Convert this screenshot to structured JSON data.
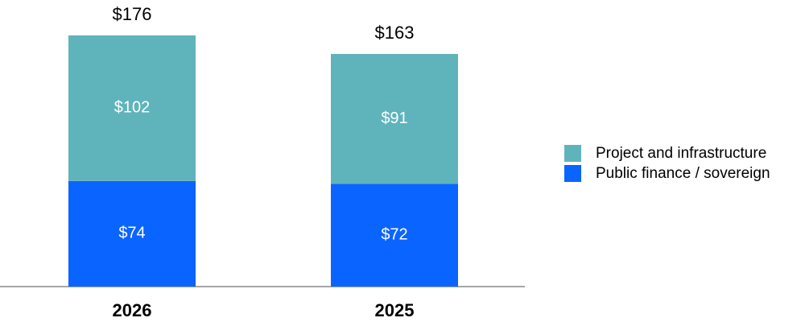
{
  "chart_data": {
    "type": "stacked_bar",
    "categories": [
      "2026",
      "2025"
    ],
    "series": [
      {
        "name": "Public finance / sovereign",
        "color": "#0a64ff",
        "values": [
          74,
          72
        ],
        "value_labels": [
          "$74",
          "$72"
        ]
      },
      {
        "name": "Project and infrastructure",
        "color": "#5fb4bc",
        "values": [
          102,
          91
        ],
        "value_labels": [
          "$102",
          "$91"
        ]
      }
    ],
    "totals": [
      176,
      163
    ],
    "total_labels": [
      "$176",
      "$163"
    ],
    "legend": "right"
  }
}
